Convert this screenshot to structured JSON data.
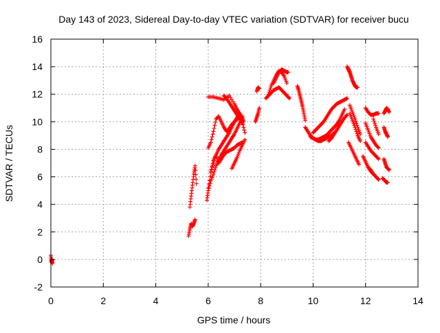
{
  "chart_data": {
    "type": "scatter",
    "title": "Day 143 of 2023, Sidereal Day-to-day VTEC variation (SDTVAR) for receiver bucu",
    "xlabel": "GPS time / hours",
    "ylabel": "SDTVAR / TECUs",
    "xlim": [
      0,
      14
    ],
    "ylim": [
      -2,
      16
    ],
    "xticks": [
      0,
      2,
      4,
      6,
      8,
      10,
      12,
      14
    ],
    "yticks": [
      -2,
      0,
      2,
      4,
      6,
      8,
      10,
      12,
      14,
      16
    ],
    "grid": true,
    "marker": "+",
    "color": "#ff0000",
    "series": [
      {
        "name": "t0",
        "x": [
          0.0,
          0.02,
          0.04,
          0.06
        ],
        "y": [
          0.3,
          -0.2,
          0.0,
          -0.3
        ]
      },
      {
        "name": "s1",
        "x": [
          5.25,
          5.3,
          5.35,
          5.4,
          5.45,
          5.5
        ],
        "y": [
          1.7,
          2.2,
          2.6,
          2.4,
          2.6,
          2.9
        ]
      },
      {
        "name": "s2",
        "x": [
          5.3,
          5.35,
          5.4,
          5.45,
          5.5,
          5.55
        ],
        "y": [
          3.8,
          4.6,
          5.4,
          6.2,
          6.8,
          5.5
        ]
      },
      {
        "name": "s3",
        "x": [
          5.95,
          6.0,
          6.1,
          6.2,
          6.3,
          6.4,
          6.5,
          6.6,
          6.7,
          6.8,
          6.9,
          7.0,
          7.1,
          7.2,
          7.3
        ],
        "y": [
          4.3,
          5.0,
          5.7,
          6.2,
          6.8,
          7.2,
          7.6,
          7.9,
          8.2,
          8.5,
          8.8,
          9.1,
          9.5,
          9.9,
          10.3
        ]
      },
      {
        "name": "s4",
        "x": [
          6.0,
          6.1,
          6.2,
          6.3,
          6.4,
          6.5,
          6.6,
          6.7,
          6.8,
          6.9,
          7.0,
          7.1,
          7.2,
          7.3
        ],
        "y": [
          5.2,
          6.3,
          7.2,
          7.6,
          7.0,
          7.3,
          7.6,
          7.8,
          7.9,
          8.0,
          8.1,
          8.3,
          8.4,
          8.5
        ]
      },
      {
        "name": "s5",
        "x": [
          6.0,
          6.1,
          6.2,
          6.3,
          6.4,
          6.5,
          6.6,
          6.7,
          6.8,
          6.9,
          7.0,
          7.1,
          7.2,
          7.3
        ],
        "y": [
          8.1,
          8.5,
          9.3,
          10.2,
          10.4,
          10.0,
          9.6,
          9.3,
          9.5,
          9.8,
          10.0,
          10.2,
          10.3,
          10.4
        ]
      },
      {
        "name": "s6",
        "x": [
          6.1,
          6.2,
          6.3,
          6.4,
          6.5,
          6.6,
          6.7,
          6.8,
          6.9,
          7.0,
          7.1,
          7.2,
          7.3,
          7.4
        ],
        "y": [
          6.4,
          7.0,
          7.6,
          8.0,
          8.3,
          8.6,
          8.9,
          9.2,
          9.6,
          10.0,
          10.3,
          10.6,
          10.0,
          9.2
        ]
      },
      {
        "name": "s7",
        "x": [
          6.9,
          7.0,
          7.1,
          7.2,
          7.3,
          7.4
        ],
        "y": [
          6.6,
          7.0,
          7.4,
          7.9,
          8.3,
          8.7
        ]
      },
      {
        "name": "s8",
        "x": [
          6.0,
          6.2,
          6.4,
          6.6,
          6.8,
          7.0,
          7.1,
          7.2,
          7.3,
          7.35
        ],
        "y": [
          11.8,
          11.8,
          11.7,
          11.6,
          11.9,
          11.3,
          10.9,
          10.6,
          10.3,
          10.0
        ]
      },
      {
        "name": "s9",
        "x": [
          6.6,
          6.7,
          6.8,
          6.9,
          7.0,
          7.1,
          7.2,
          7.3
        ],
        "y": [
          11.9,
          11.7,
          11.4,
          11.1,
          10.8,
          10.5,
          10.2,
          9.9
        ]
      },
      {
        "name": "s10",
        "x": [
          7.8,
          7.85,
          7.9,
          7.95
        ],
        "y": [
          10.0,
          10.3,
          10.6,
          11.0
        ]
      },
      {
        "name": "s11",
        "x": [
          7.85,
          7.9,
          7.95
        ],
        "y": [
          12.2,
          12.5,
          12.4
        ]
      },
      {
        "name": "s12",
        "x": [
          8.2,
          8.3,
          8.4,
          8.5,
          8.6,
          8.7,
          8.8,
          8.9,
          9.0,
          9.1
        ],
        "y": [
          11.7,
          11.9,
          12.1,
          12.3,
          12.4,
          12.5,
          12.3,
          12.1,
          11.9,
          11.7
        ]
      },
      {
        "name": "s13",
        "x": [
          8.3,
          8.4,
          8.5,
          8.6,
          8.7,
          8.8,
          8.9,
          9.0
        ],
        "y": [
          12.0,
          12.6,
          13.0,
          13.4,
          13.7,
          13.6,
          13.3,
          12.8
        ]
      },
      {
        "name": "s14",
        "x": [
          8.5,
          8.6,
          8.7,
          8.8,
          8.9,
          9.0,
          9.05
        ],
        "y": [
          12.8,
          13.2,
          13.6,
          13.8,
          13.7,
          13.6,
          13.6
        ]
      },
      {
        "name": "s15",
        "x": [
          9.4,
          9.45,
          9.5,
          9.55,
          9.6,
          9.65,
          9.7
        ],
        "y": [
          12.6,
          12.3,
          11.9,
          11.5,
          11.1,
          10.6,
          10.1
        ]
      },
      {
        "name": "s16",
        "x": [
          9.7,
          9.8,
          9.9,
          10.0,
          10.1,
          10.2,
          10.3,
          10.4,
          10.5,
          10.6,
          10.7,
          10.8
        ],
        "y": [
          9.6,
          9.3,
          9.0,
          8.8,
          8.7,
          8.6,
          8.6,
          8.7,
          8.8,
          8.9,
          9.0,
          9.2
        ]
      },
      {
        "name": "s17",
        "x": [
          9.9,
          10.0,
          10.1,
          10.2,
          10.3,
          10.4,
          10.5,
          10.6,
          10.7,
          10.8,
          10.9,
          11.0,
          11.1,
          11.2
        ],
        "y": [
          8.9,
          8.8,
          8.7,
          8.7,
          8.8,
          8.9,
          9.0,
          9.2,
          9.4,
          9.6,
          9.8,
          10.1,
          10.5,
          10.9
        ]
      },
      {
        "name": "s18",
        "x": [
          10.0,
          10.1,
          10.2,
          10.3,
          10.4,
          10.5,
          10.6,
          10.7,
          10.8,
          10.9,
          11.0,
          11.1,
          11.2,
          11.3
        ],
        "y": [
          9.2,
          9.4,
          9.6,
          9.8,
          10.0,
          10.3,
          10.6,
          10.9,
          11.1,
          11.3,
          11.4,
          11.5,
          11.6,
          11.7
        ]
      },
      {
        "name": "s19",
        "x": [
          10.6,
          10.7,
          10.8,
          10.9,
          11.0,
          11.1,
          11.2,
          11.3
        ],
        "y": [
          8.6,
          8.8,
          9.1,
          9.4,
          9.7,
          10.0,
          10.3,
          10.5
        ]
      },
      {
        "name": "s20",
        "x": [
          11.3,
          11.35,
          11.4,
          11.45,
          11.5,
          11.55,
          11.6,
          11.65,
          11.7
        ],
        "y": [
          14.0,
          13.8,
          13.6,
          13.3,
          13.0,
          12.8,
          12.6,
          12.5,
          12.5
        ]
      },
      {
        "name": "s21",
        "x": [
          11.4,
          11.5,
          11.6,
          11.7,
          11.8
        ],
        "y": [
          11.2,
          10.7,
          10.2,
          9.6,
          9.1
        ]
      },
      {
        "name": "s22",
        "x": [
          11.4,
          11.5,
          11.6,
          11.7,
          11.8
        ],
        "y": [
          10.6,
          10.1,
          9.6,
          9.0,
          8.6
        ]
      },
      {
        "name": "s23",
        "x": [
          11.35,
          11.45,
          11.55,
          11.65,
          11.75
        ],
        "y": [
          8.5,
          8.1,
          7.7,
          7.3,
          6.9
        ]
      },
      {
        "name": "s24",
        "x": [
          11.9,
          12.0,
          12.1,
          12.2,
          12.3,
          12.4,
          12.5
        ],
        "y": [
          7.5,
          7.1,
          6.7,
          6.4,
          6.2,
          6.0,
          5.8
        ]
      },
      {
        "name": "s25",
        "x": [
          12.1,
          12.2,
          12.3,
          12.4,
          12.5
        ],
        "y": [
          6.7,
          6.5,
          6.2,
          6.0,
          5.8
        ]
      },
      {
        "name": "s26",
        "x": [
          12.0,
          12.1,
          12.2,
          12.3,
          12.4,
          12.5
        ],
        "y": [
          8.5,
          8.2,
          7.9,
          7.7,
          7.5,
          7.3
        ]
      },
      {
        "name": "s27",
        "x": [
          12.0,
          12.1,
          12.2,
          12.3,
          12.4,
          12.5
        ],
        "y": [
          9.9,
          9.4,
          8.9,
          8.6,
          8.3,
          8.1
        ]
      },
      {
        "name": "s28",
        "x": [
          12.0,
          12.1,
          12.2,
          12.3,
          12.4,
          12.5
        ],
        "y": [
          11.0,
          10.7,
          10.5,
          10.5,
          10.6,
          10.6
        ]
      },
      {
        "name": "s29",
        "x": [
          12.3,
          12.4,
          12.5
        ],
        "y": [
          10.2,
          9.6,
          9.1
        ]
      },
      {
        "name": "s30",
        "x": [
          12.7,
          12.75,
          12.8,
          12.85,
          12.9
        ],
        "y": [
          10.6,
          10.8,
          11.0,
          10.9,
          10.7
        ]
      },
      {
        "name": "s31",
        "x": [
          12.7,
          12.75,
          12.8,
          12.85
        ],
        "y": [
          9.6,
          9.3,
          9.1,
          8.9
        ]
      },
      {
        "name": "s32",
        "x": [
          12.7,
          12.75,
          12.8,
          12.85,
          12.9
        ],
        "y": [
          7.3,
          7.0,
          6.7,
          6.6,
          6.5
        ]
      },
      {
        "name": "s33",
        "x": [
          12.65,
          12.7,
          12.75,
          12.8,
          12.85
        ],
        "y": [
          5.9,
          5.8,
          5.7,
          5.6,
          5.6
        ]
      }
    ]
  }
}
